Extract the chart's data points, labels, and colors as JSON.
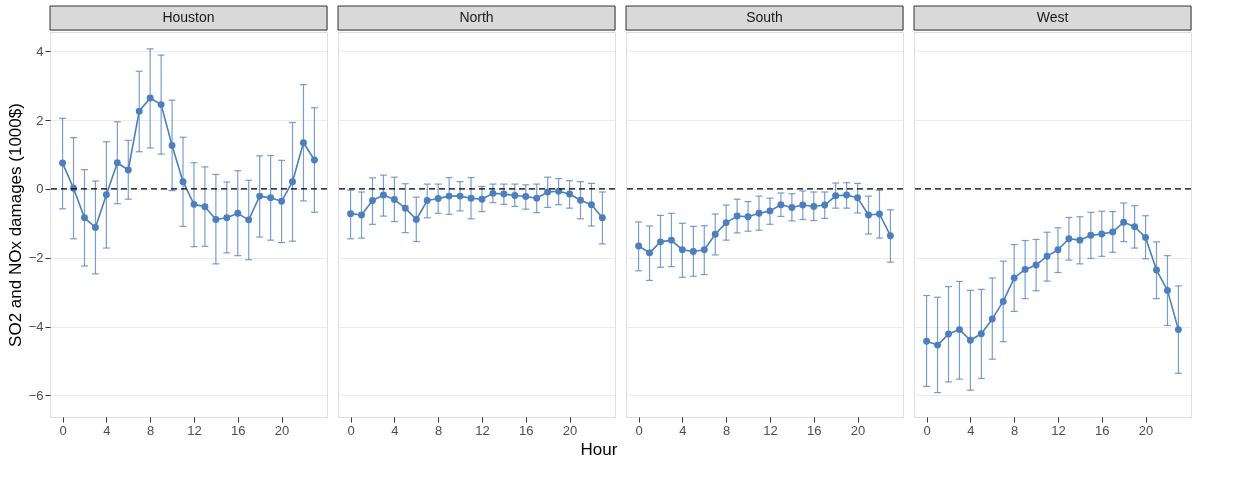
{
  "chart_data": [
    {
      "type": "line",
      "title": "Houston",
      "ylabel": "SO2 and NOx damages (1000$)",
      "x": [
        0,
        1,
        2,
        3,
        4,
        5,
        6,
        7,
        8,
        9,
        10,
        11,
        12,
        13,
        14,
        15,
        16,
        17,
        18,
        19,
        20,
        21,
        22,
        23
      ],
      "xlim": [
        -1.15,
        24.15
      ],
      "xticks": [
        0,
        4,
        8,
        12,
        16,
        20
      ],
      "ylim": [
        -6.63,
        4.56
      ],
      "yticks": [
        -6,
        -4,
        -2,
        0,
        2,
        4
      ],
      "grid": "y",
      "marker": "circle",
      "line_style": "solid",
      "series": [
        {
          "color": "#4a7fc1",
          "values": [
            0.75,
            0.02,
            -0.84,
            -1.12,
            -0.17,
            0.76,
            0.55,
            2.26,
            2.64,
            2.45,
            1.26,
            0.21,
            -0.45,
            -0.52,
            -0.89,
            -0.84,
            -0.71,
            -0.9,
            -0.21,
            -0.26,
            -0.36,
            0.21,
            1.34,
            0.84
          ],
          "errors": [
            [
              -0.58,
              2.05
            ],
            [
              -1.45,
              1.49
            ],
            [
              -2.24,
              0.56
            ],
            [
              -2.47,
              0.23
            ],
            [
              -1.72,
              1.37
            ],
            [
              -0.43,
              1.95
            ],
            [
              -0.3,
              1.41
            ],
            [
              1.08,
              3.42
            ],
            [
              1.19,
              4.07
            ],
            [
              1.01,
              3.89
            ],
            [
              -0.05,
              2.58
            ],
            [
              -1.09,
              1.5
            ],
            [
              -1.68,
              0.76
            ],
            [
              -1.67,
              0.64
            ],
            [
              -2.18,
              0.42
            ],
            [
              -1.86,
              0.2
            ],
            [
              -1.94,
              0.53
            ],
            [
              -2.06,
              0.25
            ],
            [
              -1.4,
              0.96
            ],
            [
              -1.49,
              0.97
            ],
            [
              -1.56,
              0.83
            ],
            [
              -1.52,
              1.93
            ],
            [
              -0.35,
              3.03
            ],
            [
              -0.68,
              2.36
            ]
          ]
        }
      ],
      "ref_lines": [
        {
          "axis": "y",
          "value": 0,
          "color": "#000000",
          "line_style": "dashed"
        }
      ]
    },
    {
      "type": "line",
      "title": "North",
      "x": [
        0,
        1,
        2,
        3,
        4,
        5,
        6,
        7,
        8,
        9,
        10,
        11,
        12,
        13,
        14,
        15,
        16,
        17,
        18,
        19,
        20,
        21,
        22,
        23
      ],
      "xlim": [
        -1.15,
        24.15
      ],
      "xticks": [
        0,
        4,
        8,
        12,
        16,
        20
      ],
      "ylim": [
        -6.63,
        4.56
      ],
      "yticks": [
        -6,
        -4,
        -2,
        0,
        2,
        4
      ],
      "tick_labels": "x",
      "grid": "y",
      "marker": "circle",
      "line_style": "solid",
      "series": [
        {
          "color": "#4a7fc1",
          "values": [
            -0.72,
            -0.76,
            -0.34,
            -0.18,
            -0.31,
            -0.56,
            -0.89,
            -0.34,
            -0.28,
            -0.21,
            -0.21,
            -0.27,
            -0.3,
            -0.13,
            -0.15,
            -0.19,
            -0.22,
            -0.27,
            -0.09,
            -0.07,
            -0.15,
            -0.33,
            -0.46,
            -0.84
          ],
          "errors": [
            [
              -1.45,
              -0.04
            ],
            [
              -1.43,
              -0.09
            ],
            [
              -1.03,
              0.32
            ],
            [
              -0.79,
              0.4
            ],
            [
              -0.95,
              0.34
            ],
            [
              -1.27,
              0.15
            ],
            [
              -1.53,
              -0.24
            ],
            [
              -0.84,
              0.14
            ],
            [
              -0.71,
              0.14
            ],
            [
              -0.74,
              0.33
            ],
            [
              -0.64,
              0.21
            ],
            [
              -0.87,
              0.33
            ],
            [
              -0.66,
              0.07
            ],
            [
              -0.4,
              0.14
            ],
            [
              -0.45,
              0.14
            ],
            [
              -0.51,
              0.14
            ],
            [
              -0.59,
              0.12
            ],
            [
              -0.69,
              0.14
            ],
            [
              -0.54,
              0.34
            ],
            [
              -0.46,
              0.3
            ],
            [
              -0.56,
              0.24
            ],
            [
              -0.87,
              0.21
            ],
            [
              -1.08,
              0.16
            ],
            [
              -1.6,
              -0.09
            ]
          ]
        }
      ],
      "ref_lines": [
        {
          "axis": "y",
          "value": 0,
          "color": "#000000",
          "line_style": "dashed"
        }
      ]
    },
    {
      "type": "line",
      "title": "South",
      "xlabel": "Hour",
      "x": [
        0,
        1,
        2,
        3,
        4,
        5,
        6,
        7,
        8,
        9,
        10,
        11,
        12,
        13,
        14,
        15,
        16,
        17,
        18,
        19,
        20,
        21,
        22,
        23
      ],
      "xlim": [
        -1.15,
        24.15
      ],
      "xticks": [
        0,
        4,
        8,
        12,
        16,
        20
      ],
      "ylim": [
        -6.63,
        4.56
      ],
      "yticks": [
        -6,
        -4,
        -2,
        0,
        2,
        4
      ],
      "tick_labels": "x",
      "grid": "y",
      "marker": "circle",
      "line_style": "solid",
      "series": [
        {
          "color": "#4a7fc1",
          "values": [
            -1.66,
            -1.86,
            -1.54,
            -1.49,
            -1.77,
            -1.82,
            -1.77,
            -1.32,
            -0.98,
            -0.79,
            -0.81,
            -0.71,
            -0.64,
            -0.46,
            -0.54,
            -0.47,
            -0.51,
            -0.47,
            -0.2,
            -0.18,
            -0.26,
            -0.76,
            -0.73,
            -1.36
          ],
          "errors": [
            [
              -2.38,
              -0.96
            ],
            [
              -2.66,
              -1.08
            ],
            [
              -2.28,
              -0.77
            ],
            [
              -2.26,
              -0.71
            ],
            [
              -2.57,
              -1.0
            ],
            [
              -2.54,
              -1.09
            ],
            [
              -2.49,
              -1.07
            ],
            [
              -1.92,
              -0.73
            ],
            [
              -1.49,
              -0.47
            ],
            [
              -1.28,
              -0.3
            ],
            [
              -1.23,
              -0.37
            ],
            [
              -1.2,
              -0.21
            ],
            [
              -1.03,
              -0.27
            ],
            [
              -0.8,
              -0.12
            ],
            [
              -0.93,
              -0.14
            ],
            [
              -0.89,
              -0.06
            ],
            [
              -0.92,
              -0.09
            ],
            [
              -0.86,
              -0.09
            ],
            [
              -0.56,
              0.17
            ],
            [
              -0.56,
              0.18
            ],
            [
              -0.7,
              0.16
            ],
            [
              -1.31,
              -0.21
            ],
            [
              -1.43,
              -0.04
            ],
            [
              -2.13,
              -0.61
            ]
          ]
        }
      ],
      "ref_lines": [
        {
          "axis": "y",
          "value": 0,
          "color": "#000000",
          "line_style": "dashed"
        }
      ]
    },
    {
      "type": "line",
      "title": "West",
      "x": [
        0,
        1,
        2,
        3,
        4,
        5,
        6,
        7,
        8,
        9,
        10,
        11,
        12,
        13,
        14,
        15,
        16,
        17,
        18,
        19,
        20,
        21,
        22,
        23
      ],
      "xlim": [
        -1.15,
        24.15
      ],
      "xticks": [
        0,
        4,
        8,
        12,
        16,
        20
      ],
      "ylim": [
        -6.63,
        4.56
      ],
      "yticks": [
        -6,
        -4,
        -2,
        0,
        2,
        4
      ],
      "tick_labels": "x",
      "grid": "y",
      "marker": "circle",
      "line_style": "solid",
      "series": [
        {
          "color": "#4a7fc1",
          "values": [
            -4.43,
            -4.54,
            -4.22,
            -4.09,
            -4.4,
            -4.21,
            -3.78,
            -3.27,
            -2.59,
            -2.34,
            -2.21,
            -1.96,
            -1.77,
            -1.45,
            -1.49,
            -1.35,
            -1.31,
            -1.25,
            -0.97,
            -1.1,
            -1.41,
            -2.36,
            -2.95,
            -4.09
          ],
          "errors": [
            [
              -5.74,
              -3.1
            ],
            [
              -5.92,
              -3.15
            ],
            [
              -5.61,
              -2.84
            ],
            [
              -5.53,
              -2.69
            ],
            [
              -5.85,
              -2.95
            ],
            [
              -5.51,
              -2.92
            ],
            [
              -4.95,
              -2.59
            ],
            [
              -4.44,
              -2.1
            ],
            [
              -3.56,
              -1.62
            ],
            [
              -3.19,
              -1.5
            ],
            [
              -2.96,
              -1.47
            ],
            [
              -2.68,
              -1.26
            ],
            [
              -2.43,
              -1.13
            ],
            [
              -2.07,
              -0.83
            ],
            [
              -2.18,
              -0.81
            ],
            [
              -2.02,
              -0.68
            ],
            [
              -1.96,
              -0.65
            ],
            [
              -1.84,
              -0.66
            ],
            [
              -1.53,
              -0.41
            ],
            [
              -1.72,
              -0.49
            ],
            [
              -2.03,
              -0.78
            ],
            [
              -3.19,
              -1.54
            ],
            [
              -3.97,
              -1.94
            ],
            [
              -5.36,
              -2.82
            ]
          ]
        }
      ],
      "ref_lines": [
        {
          "axis": "y",
          "value": 0,
          "color": "#000000",
          "line_style": "dashed"
        }
      ]
    }
  ]
}
